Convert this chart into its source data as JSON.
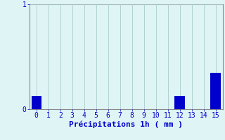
{
  "values": [
    0.13,
    0.0,
    0.0,
    0.0,
    0.0,
    0.0,
    0.0,
    0.0,
    0.0,
    0.0,
    0.0,
    0.0,
    0.13,
    0.0,
    0.0,
    0.35
  ],
  "categories": [
    0,
    1,
    2,
    3,
    4,
    5,
    6,
    7,
    8,
    9,
    10,
    11,
    12,
    13,
    14,
    15
  ],
  "bar_color": "#0000cc",
  "background_color": "#dff5f5",
  "grid_color": "#aacccc",
  "xlabel": "Précipitations 1h ( mm )",
  "xlabel_color": "#0000cc",
  "ytick_color": "#0000cc",
  "xtick_color": "#0000cc",
  "ylim": [
    0,
    1.0
  ],
  "xlim": [
    -0.6,
    15.6
  ],
  "bar_width": 0.85,
  "yticks": [
    0,
    1
  ],
  "xlabel_fontsize": 8,
  "tick_fontsize": 7,
  "spine_color": "#888888"
}
